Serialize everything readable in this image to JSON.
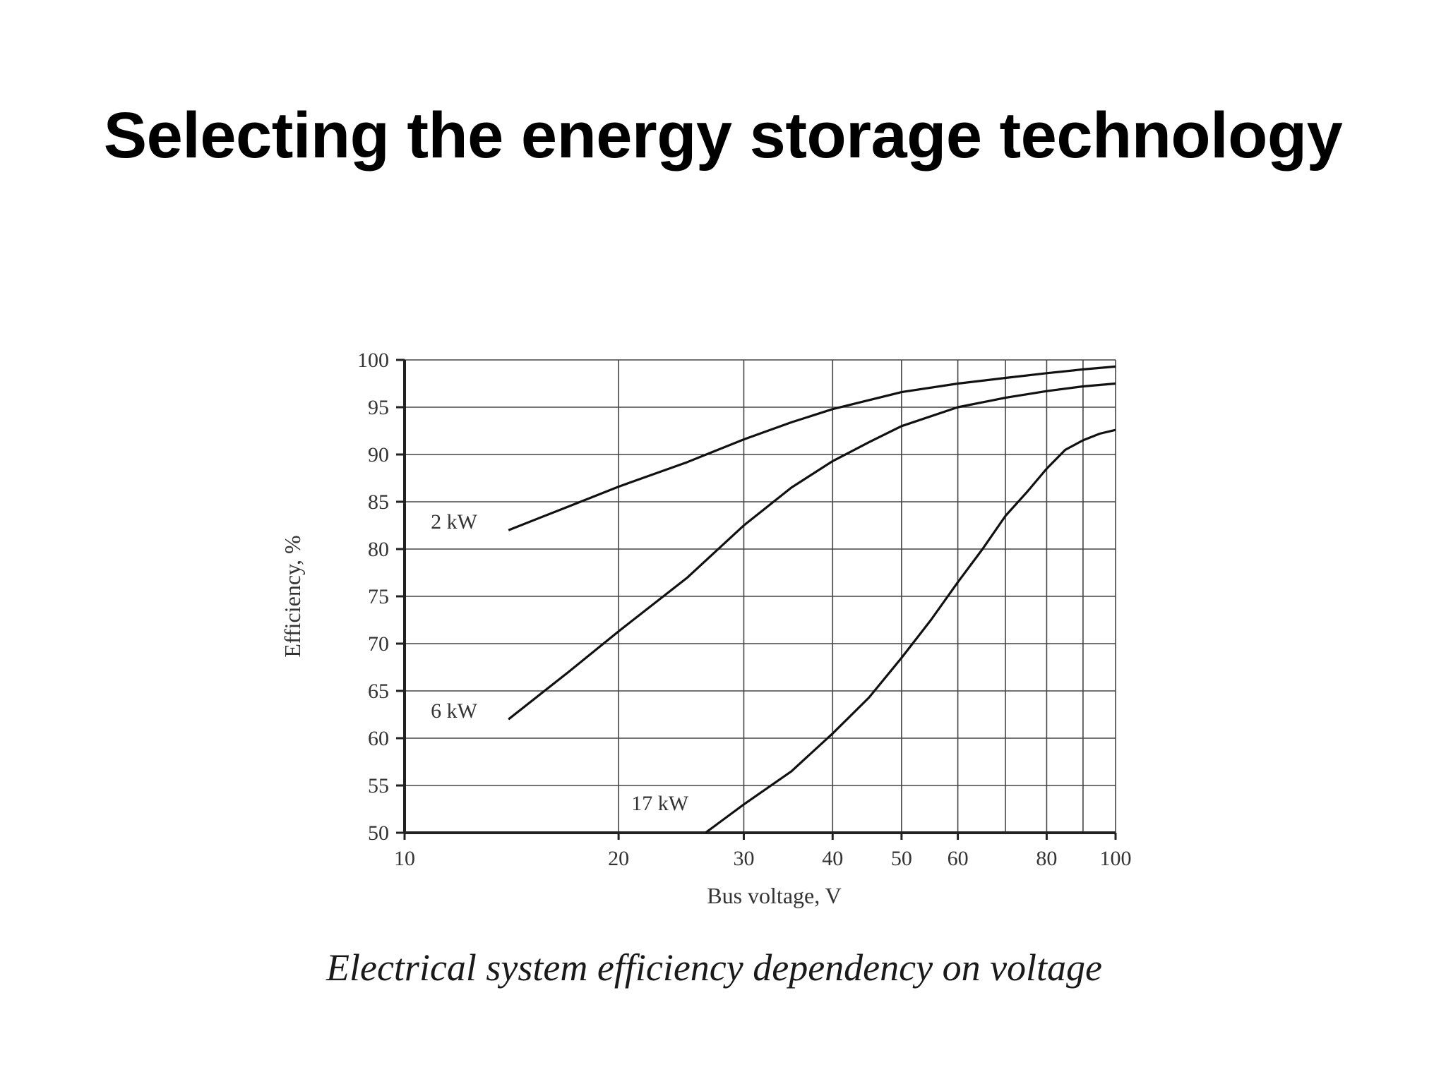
{
  "slide": {
    "title": "Selecting the energy storage technology",
    "caption": "Electrical system efficiency dependency on voltage"
  },
  "colors": {
    "axis": "#222222",
    "grid": "#444444",
    "curve": "#111111",
    "text": "#333333"
  },
  "chart_data": {
    "type": "line",
    "title": "",
    "xlabel": "Bus voltage, V",
    "ylabel": "Efficiency, %",
    "xscale": "log",
    "xlim": [
      10,
      100
    ],
    "ylim": [
      50,
      100
    ],
    "grid": true,
    "x_ticks": [
      10,
      20,
      30,
      40,
      50,
      60,
      80,
      100
    ],
    "x_gridlines": [
      20,
      30,
      40,
      50,
      60,
      70,
      80,
      90,
      100
    ],
    "y_ticks": [
      50,
      55,
      60,
      65,
      70,
      75,
      80,
      85,
      90,
      95,
      100
    ],
    "series": [
      {
        "name": "2 kW",
        "points": [
          [
            14,
            82
          ],
          [
            17,
            84.5
          ],
          [
            20,
            86.6
          ],
          [
            25,
            89.2
          ],
          [
            30,
            91.6
          ],
          [
            35,
            93.4
          ],
          [
            40,
            94.8
          ],
          [
            50,
            96.6
          ],
          [
            60,
            97.5
          ],
          [
            70,
            98.1
          ],
          [
            80,
            98.6
          ],
          [
            90,
            99.0
          ],
          [
            100,
            99.3
          ]
        ]
      },
      {
        "name": "6 kW",
        "points": [
          [
            14,
            62
          ],
          [
            17,
            67
          ],
          [
            20,
            71.3
          ],
          [
            25,
            77
          ],
          [
            30,
            82.5
          ],
          [
            35,
            86.5
          ],
          [
            40,
            89.3
          ],
          [
            45,
            91.3
          ],
          [
            50,
            93
          ],
          [
            60,
            95
          ],
          [
            70,
            96
          ],
          [
            80,
            96.7
          ],
          [
            90,
            97.2
          ],
          [
            100,
            97.5
          ]
        ]
      },
      {
        "name": "17 kW",
        "points": [
          [
            26.5,
            50
          ],
          [
            30,
            53
          ],
          [
            35,
            56.5
          ],
          [
            40,
            60.5
          ],
          [
            45,
            64.3
          ],
          [
            50,
            68.5
          ],
          [
            55,
            72.5
          ],
          [
            60,
            76.5
          ],
          [
            65,
            80
          ],
          [
            70,
            83.5
          ],
          [
            75,
            86
          ],
          [
            80,
            88.5
          ],
          [
            85,
            90.5
          ],
          [
            90,
            91.5
          ],
          [
            95,
            92.2
          ],
          [
            100,
            92.6
          ]
        ]
      }
    ]
  }
}
